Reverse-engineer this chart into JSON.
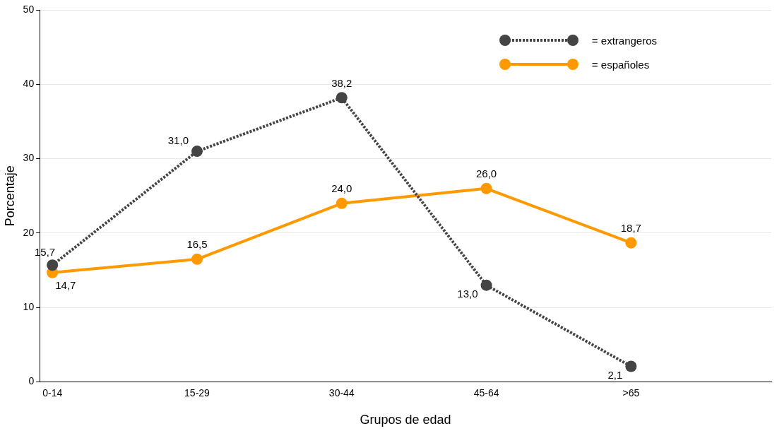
{
  "chart_data": {
    "type": "line",
    "xlabel": "Grupos de edad",
    "ylabel": "Porcentaje",
    "categories": [
      "0-14",
      "15-29",
      "30-44",
      "45-64",
      ">65"
    ],
    "series": [
      {
        "name": "= extrangeros",
        "color": "#444444",
        "values": [
          15.7,
          31.0,
          38.2,
          13.0,
          2.1
        ],
        "value_labels": [
          "15,7",
          "31,0",
          "38,2",
          "13,0",
          "2,1"
        ],
        "line_style": "dotted"
      },
      {
        "name": "= españoles",
        "color": "#ff9900",
        "values": [
          14.7,
          16.5,
          24.0,
          26.0,
          18.7
        ],
        "value_labels": [
          "14,7",
          "16,5",
          "24,0",
          "26,0",
          "18,7"
        ],
        "line_style": "solid"
      }
    ],
    "ylim": [
      0,
      50
    ],
    "yticks": [
      0,
      10,
      20,
      30,
      40,
      50
    ],
    "grid": "y",
    "legend": "top right",
    "marker": "circle"
  }
}
